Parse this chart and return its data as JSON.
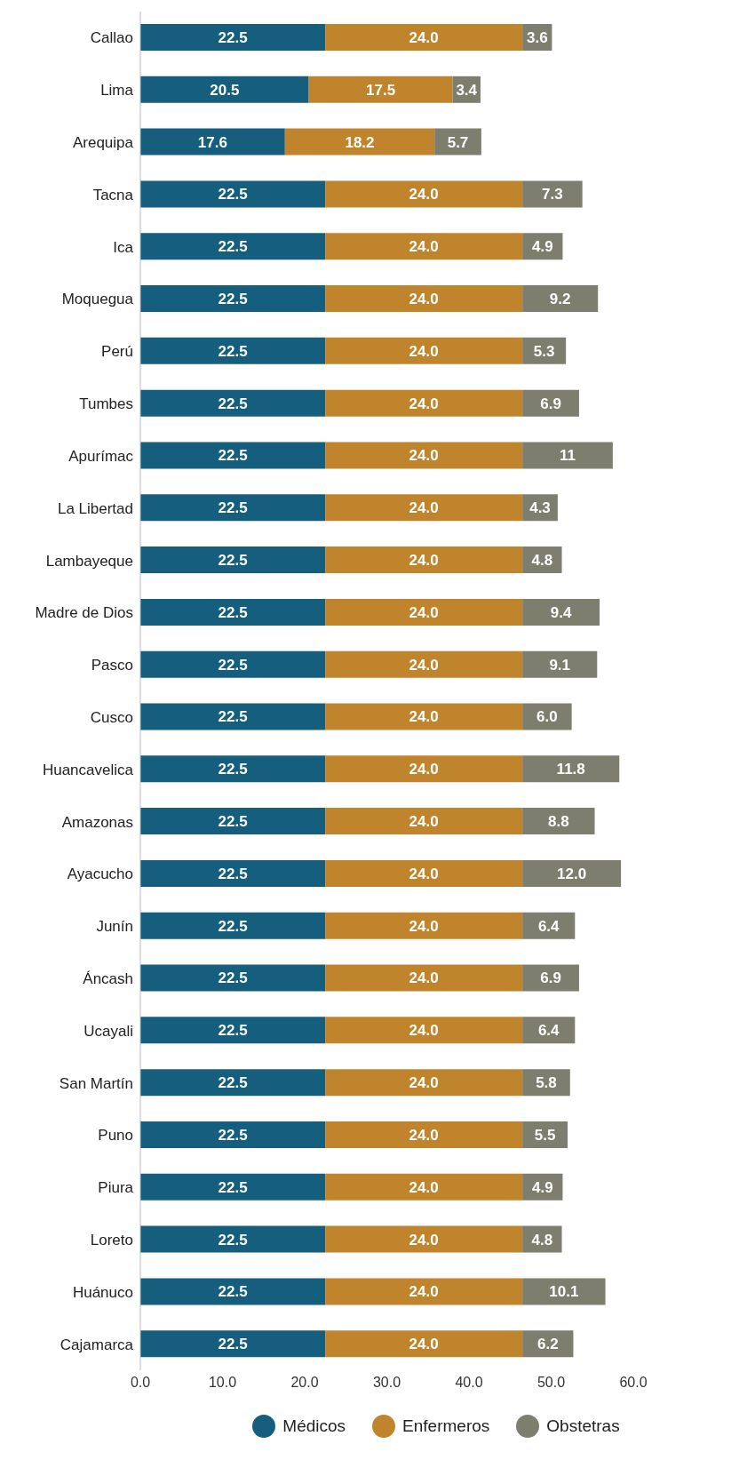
{
  "chart_data": {
    "type": "bar",
    "orientation": "horizontal",
    "stacked": true,
    "categories": [
      "Callao",
      "Lima",
      "Arequipa",
      "Tacna",
      "Ica",
      "Moquegua",
      "Perú",
      "Tumbes",
      "Apurímac",
      "La Libertad",
      "Lambayeque",
      "Madre de Dios",
      "Pasco",
      "Cusco",
      "Huancavelica",
      "Amazonas",
      "Ayacucho",
      "Junín",
      "Áncash",
      "Ucayali",
      "San Martín",
      "Puno",
      "Piura",
      "Loreto",
      "Huánuco",
      "Cajamarca"
    ],
    "series": [
      {
        "name": "Médicos",
        "color": "#155e7e",
        "values": [
          22.5,
          20.5,
          17.6,
          22.5,
          22.5,
          22.5,
          22.5,
          22.5,
          22.5,
          22.5,
          22.5,
          22.5,
          22.5,
          22.5,
          22.5,
          22.5,
          22.5,
          22.5,
          22.5,
          22.5,
          22.5,
          22.5,
          22.5,
          22.5,
          22.5,
          22.5
        ]
      },
      {
        "name": "Enfermeros",
        "color": "#c0842c",
        "values": [
          24.0,
          17.5,
          18.2,
          24.0,
          24.0,
          24.0,
          24.0,
          24.0,
          24.0,
          24.0,
          24.0,
          24.0,
          24.0,
          24.0,
          24.0,
          24.0,
          24.0,
          24.0,
          24.0,
          24.0,
          24.0,
          24.0,
          24.0,
          24.0,
          24.0,
          24.0
        ],
        "value_labels": [
          "24.0",
          "17.5",
          "18.2",
          "24.0",
          "24.0",
          "24.0",
          "24.0",
          "24.0",
          "24.0",
          "24.0",
          "24.0",
          "24.0",
          "24.0",
          "24.0",
          "24.0",
          "24.0",
          "24.0",
          "24.0",
          "24.0",
          "24.0",
          "24.0",
          "24.0",
          "24.0",
          "24.0",
          "24.0",
          "24.0"
        ]
      },
      {
        "name": "Obstetras",
        "color": "#7d7e6e",
        "values": [
          3.6,
          3.4,
          5.7,
          7.3,
          4.9,
          9.2,
          5.3,
          6.9,
          11,
          4.3,
          4.8,
          9.4,
          9.1,
          6.0,
          11.8,
          8.8,
          12.0,
          6.4,
          6.9,
          6.4,
          5.8,
          5.5,
          4.9,
          4.8,
          10.1,
          6.2
        ],
        "value_labels": [
          "3.6",
          "3.4",
          "5.7",
          "7.3",
          "4.9",
          "9.2",
          "5.3",
          "6.9",
          "11",
          "4.3",
          "4.8",
          "9.4",
          "9.1",
          "6.0",
          "11.8",
          "8.8",
          "12.0",
          "6.4",
          "6.9",
          "6.4",
          "5.8",
          "5.5",
          "4.9",
          "4.8",
          "10.1",
          "6.2"
        ]
      }
    ],
    "xlim": [
      0,
      72
    ],
    "xticks": [
      {
        "value": 0,
        "label": "0.0"
      },
      {
        "value": 10,
        "label": "10.0"
      },
      {
        "value": 20,
        "label": "20.0"
      },
      {
        "value": 30,
        "label": "30.0"
      },
      {
        "value": 40,
        "label": "40.0"
      },
      {
        "value": 50,
        "label": "50.0"
      },
      {
        "value": 60,
        "label": "60.0"
      }
    ],
    "data_labels": true,
    "legend": "bottom"
  }
}
